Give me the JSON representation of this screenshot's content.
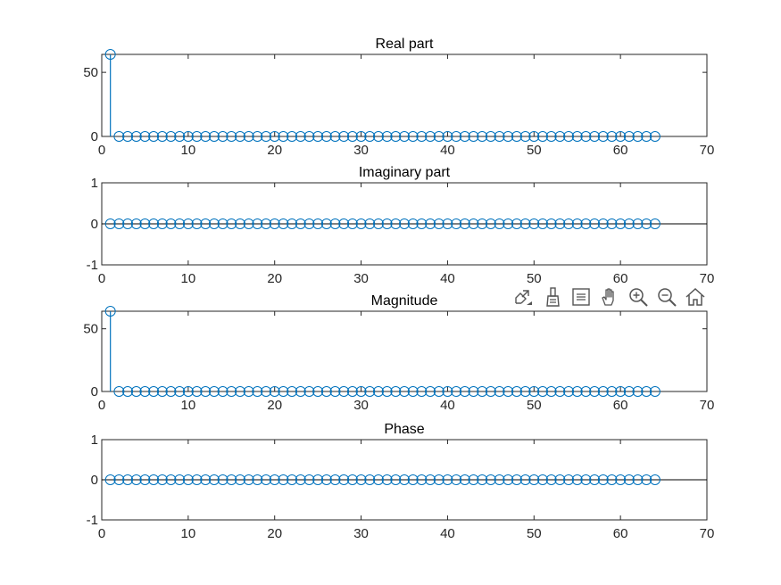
{
  "chart_data": [
    {
      "type": "stem",
      "title": "Real part",
      "xlabel": "",
      "ylabel": "",
      "xlim": [
        0,
        70
      ],
      "ylim": [
        0,
        64
      ],
      "xticks": [
        "0",
        "10",
        "20",
        "30",
        "40",
        "50",
        "60",
        "70"
      ],
      "yticks": [
        "0",
        "50"
      ],
      "x": [
        1,
        2,
        3,
        4,
        5,
        6,
        7,
        8,
        9,
        10,
        11,
        12,
        13,
        14,
        15,
        16,
        17,
        18,
        19,
        20,
        21,
        22,
        23,
        24,
        25,
        26,
        27,
        28,
        29,
        30,
        31,
        32,
        33,
        34,
        35,
        36,
        37,
        38,
        39,
        40,
        41,
        42,
        43,
        44,
        45,
        46,
        47,
        48,
        49,
        50,
        51,
        52,
        53,
        54,
        55,
        56,
        57,
        58,
        59,
        60,
        61,
        62,
        63,
        64
      ],
      "values": [
        64,
        0,
        0,
        0,
        0,
        0,
        0,
        0,
        0,
        0,
        0,
        0,
        0,
        0,
        0,
        0,
        0,
        0,
        0,
        0,
        0,
        0,
        0,
        0,
        0,
        0,
        0,
        0,
        0,
        0,
        0,
        0,
        0,
        0,
        0,
        0,
        0,
        0,
        0,
        0,
        0,
        0,
        0,
        0,
        0,
        0,
        0,
        0,
        0,
        0,
        0,
        0,
        0,
        0,
        0,
        0,
        0,
        0,
        0,
        0,
        0,
        0,
        0,
        0
      ]
    },
    {
      "type": "stem",
      "title": "Imaginary part",
      "xlabel": "",
      "ylabel": "",
      "xlim": [
        0,
        70
      ],
      "ylim": [
        -1,
        1
      ],
      "xticks": [
        "0",
        "10",
        "20",
        "30",
        "40",
        "50",
        "60",
        "70"
      ],
      "yticks": [
        "-1",
        "0",
        "1"
      ],
      "x": [
        1,
        2,
        3,
        4,
        5,
        6,
        7,
        8,
        9,
        10,
        11,
        12,
        13,
        14,
        15,
        16,
        17,
        18,
        19,
        20,
        21,
        22,
        23,
        24,
        25,
        26,
        27,
        28,
        29,
        30,
        31,
        32,
        33,
        34,
        35,
        36,
        37,
        38,
        39,
        40,
        41,
        42,
        43,
        44,
        45,
        46,
        47,
        48,
        49,
        50,
        51,
        52,
        53,
        54,
        55,
        56,
        57,
        58,
        59,
        60,
        61,
        62,
        63,
        64
      ],
      "values": [
        0,
        0,
        0,
        0,
        0,
        0,
        0,
        0,
        0,
        0,
        0,
        0,
        0,
        0,
        0,
        0,
        0,
        0,
        0,
        0,
        0,
        0,
        0,
        0,
        0,
        0,
        0,
        0,
        0,
        0,
        0,
        0,
        0,
        0,
        0,
        0,
        0,
        0,
        0,
        0,
        0,
        0,
        0,
        0,
        0,
        0,
        0,
        0,
        0,
        0,
        0,
        0,
        0,
        0,
        0,
        0,
        0,
        0,
        0,
        0,
        0,
        0,
        0,
        0
      ]
    },
    {
      "type": "stem",
      "title": "Magnitude",
      "xlabel": "",
      "ylabel": "",
      "xlim": [
        0,
        70
      ],
      "ylim": [
        0,
        64
      ],
      "xticks": [
        "0",
        "10",
        "20",
        "30",
        "40",
        "50",
        "60",
        "70"
      ],
      "yticks": [
        "0",
        "50"
      ],
      "x": [
        1,
        2,
        3,
        4,
        5,
        6,
        7,
        8,
        9,
        10,
        11,
        12,
        13,
        14,
        15,
        16,
        17,
        18,
        19,
        20,
        21,
        22,
        23,
        24,
        25,
        26,
        27,
        28,
        29,
        30,
        31,
        32,
        33,
        34,
        35,
        36,
        37,
        38,
        39,
        40,
        41,
        42,
        43,
        44,
        45,
        46,
        47,
        48,
        49,
        50,
        51,
        52,
        53,
        54,
        55,
        56,
        57,
        58,
        59,
        60,
        61,
        62,
        63,
        64
      ],
      "values": [
        64,
        0,
        0,
        0,
        0,
        0,
        0,
        0,
        0,
        0,
        0,
        0,
        0,
        0,
        0,
        0,
        0,
        0,
        0,
        0,
        0,
        0,
        0,
        0,
        0,
        0,
        0,
        0,
        0,
        0,
        0,
        0,
        0,
        0,
        0,
        0,
        0,
        0,
        0,
        0,
        0,
        0,
        0,
        0,
        0,
        0,
        0,
        0,
        0,
        0,
        0,
        0,
        0,
        0,
        0,
        0,
        0,
        0,
        0,
        0,
        0,
        0,
        0,
        0
      ]
    },
    {
      "type": "stem",
      "title": "Phase",
      "xlabel": "",
      "ylabel": "",
      "xlim": [
        0,
        70
      ],
      "ylim": [
        -1,
        1
      ],
      "xticks": [
        "0",
        "10",
        "20",
        "30",
        "40",
        "50",
        "60",
        "70"
      ],
      "yticks": [
        "-1",
        "0",
        "1"
      ],
      "x": [
        1,
        2,
        3,
        4,
        5,
        6,
        7,
        8,
        9,
        10,
        11,
        12,
        13,
        14,
        15,
        16,
        17,
        18,
        19,
        20,
        21,
        22,
        23,
        24,
        25,
        26,
        27,
        28,
        29,
        30,
        31,
        32,
        33,
        34,
        35,
        36,
        37,
        38,
        39,
        40,
        41,
        42,
        43,
        44,
        45,
        46,
        47,
        48,
        49,
        50,
        51,
        52,
        53,
        54,
        55,
        56,
        57,
        58,
        59,
        60,
        61,
        62,
        63,
        64
      ],
      "values": [
        0,
        0,
        0,
        0,
        0,
        0,
        0,
        0,
        0,
        0,
        0,
        0,
        0,
        0,
        0,
        0,
        0,
        0,
        0,
        0,
        0,
        0,
        0,
        0,
        0,
        0,
        0,
        0,
        0,
        0,
        0,
        0,
        0,
        0,
        0,
        0,
        0,
        0,
        0,
        0,
        0,
        0,
        0,
        0,
        0,
        0,
        0,
        0,
        0,
        0,
        0,
        0,
        0,
        0,
        0,
        0,
        0,
        0,
        0,
        0,
        0,
        0,
        0,
        0
      ]
    }
  ],
  "style": {
    "series_color": "#0072BD",
    "axis_color": "#262626",
    "baseline_color": "#000000",
    "background": "#ffffff"
  },
  "toolbar": {
    "icons": [
      "export-icon",
      "brush-icon",
      "data-tips-icon",
      "pan-icon",
      "zoom-in-icon",
      "zoom-out-icon",
      "home-icon"
    ]
  }
}
